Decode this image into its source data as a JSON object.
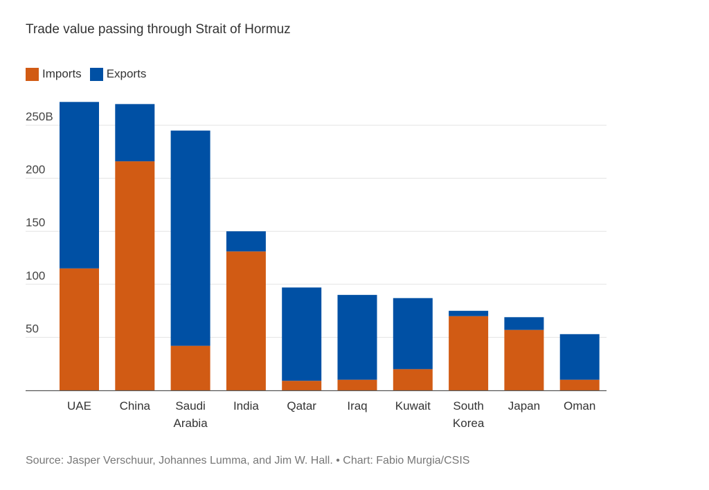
{
  "chart_data": {
    "type": "bar",
    "stacked": true,
    "title": "Trade value passing through Strait of Hormuz",
    "xlabel": "",
    "ylabel": "",
    "ylim": [
      0,
      260
    ],
    "yticks": [
      50,
      100,
      150,
      200,
      250
    ],
    "ytick_labels": [
      "50",
      "100",
      "150",
      "200",
      "250B"
    ],
    "legend_position": "top-left",
    "grid": true,
    "categories": [
      "UAE",
      "China",
      "Saudi Arabia",
      "India",
      "Qatar",
      "Iraq",
      "Kuwait",
      "South Korea",
      "Japan",
      "Oman"
    ],
    "category_lines": [
      [
        "UAE"
      ],
      [
        "China"
      ],
      [
        "Saudi",
        "Arabia"
      ],
      [
        "India"
      ],
      [
        "Qatar"
      ],
      [
        "Iraq"
      ],
      [
        "Kuwait"
      ],
      [
        "South",
        "Korea"
      ],
      [
        "Japan"
      ],
      [
        "Oman"
      ]
    ],
    "series": [
      {
        "name": "Imports",
        "color": "#d15b14",
        "values": [
          115,
          216,
          42,
          131,
          9,
          10,
          20,
          70,
          57,
          10
        ]
      },
      {
        "name": "Exports",
        "color": "#0050a4",
        "values": [
          157,
          54,
          203,
          19,
          88,
          80,
          67,
          5,
          12,
          43
        ]
      }
    ]
  },
  "source": "Source: Jasper Verschuur, Johannes Lumma, and Jim W. Hall. • Chart: Fabio Murgia/CSIS"
}
